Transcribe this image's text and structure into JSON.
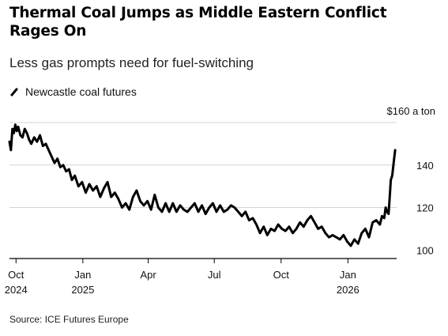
{
  "title": "Thermal Coal Jumps as Middle Eastern Conflict Rages On",
  "subtitle": "Less gas prompts need for fuel-switching",
  "legend_label": "Newcastle coal futures",
  "source": "Source: ICE Futures Europe",
  "colors": {
    "line": "#000000",
    "grid": "#d4d4d4",
    "axis": "#000000"
  },
  "chart_data": {
    "type": "line",
    "title": "Thermal Coal Jumps as Middle Eastern Conflict Rages On",
    "subtitle": "Less gas prompts need for fuel-switching",
    "xlabel": "",
    "ylabel": "",
    "y_unit_label": "$160 a ton",
    "ylim": [
      96,
      160
    ],
    "y_ticks": [
      100,
      120,
      140
    ],
    "gridlines": [
      120,
      140,
      160
    ],
    "grid": true,
    "legend_placement": "top-left",
    "x_ticks": [
      {
        "date": "2024-10-01",
        "label": "Oct",
        "sub": "2024"
      },
      {
        "date": "2025-01-01",
        "label": "Jan",
        "sub": "2025"
      },
      {
        "date": "2025-04-01",
        "label": "Apr",
        "sub": ""
      },
      {
        "date": "2025-07-01",
        "label": "Jul",
        "sub": ""
      },
      {
        "date": "2025-10-01",
        "label": "Oct",
        "sub": ""
      },
      {
        "date": "2026-01-01",
        "label": "Jan",
        "sub": "2026"
      }
    ],
    "xlim": [
      "2024-09-22",
      "2026-03-08"
    ],
    "series": [
      {
        "name": "Newcastle coal futures",
        "x": [
          "2024-09-22",
          "2024-09-24",
          "2024-09-26",
          "2024-09-28",
          "2024-09-30",
          "2024-10-02",
          "2024-10-04",
          "2024-10-07",
          "2024-10-10",
          "2024-10-13",
          "2024-10-16",
          "2024-10-19",
          "2024-10-22",
          "2024-10-26",
          "2024-10-30",
          "2024-11-03",
          "2024-11-07",
          "2024-11-11",
          "2024-11-15",
          "2024-11-19",
          "2024-11-23",
          "2024-11-27",
          "2024-12-01",
          "2024-12-05",
          "2024-12-09",
          "2024-12-13",
          "2024-12-17",
          "2024-12-21",
          "2024-12-26",
          "2024-12-31",
          "2025-01-05",
          "2025-01-10",
          "2025-01-15",
          "2025-01-20",
          "2025-01-25",
          "2025-01-30",
          "2025-02-04",
          "2025-02-09",
          "2025-02-14",
          "2025-02-19",
          "2025-02-24",
          "2025-03-01",
          "2025-03-06",
          "2025-03-11",
          "2025-03-16",
          "2025-03-21",
          "2025-03-26",
          "2025-03-31",
          "2025-04-05",
          "2025-04-10",
          "2025-04-15",
          "2025-04-20",
          "2025-04-25",
          "2025-04-30",
          "2025-05-05",
          "2025-05-10",
          "2025-05-15",
          "2025-05-20",
          "2025-05-25",
          "2025-05-30",
          "2025-06-04",
          "2025-06-09",
          "2025-06-14",
          "2025-06-19",
          "2025-06-24",
          "2025-06-29",
          "2025-07-04",
          "2025-07-09",
          "2025-07-14",
          "2025-07-19",
          "2025-07-24",
          "2025-07-29",
          "2025-08-03",
          "2025-08-08",
          "2025-08-13",
          "2025-08-18",
          "2025-08-23",
          "2025-08-28",
          "2025-09-02",
          "2025-09-07",
          "2025-09-12",
          "2025-09-17",
          "2025-09-22",
          "2025-09-27",
          "2025-10-02",
          "2025-10-07",
          "2025-10-12",
          "2025-10-17",
          "2025-10-22",
          "2025-10-27",
          "2025-11-01",
          "2025-11-06",
          "2025-11-11",
          "2025-11-16",
          "2025-11-21",
          "2025-11-26",
          "2025-12-01",
          "2025-12-06",
          "2025-12-11",
          "2025-12-16",
          "2025-12-21",
          "2025-12-26",
          "2025-12-31",
          "2026-01-05",
          "2026-01-10",
          "2026-01-15",
          "2026-01-20",
          "2026-01-25",
          "2026-01-30",
          "2026-02-04",
          "2026-02-09",
          "2026-02-14",
          "2026-02-17",
          "2026-02-20",
          "2026-02-22",
          "2026-02-24",
          "2026-02-26",
          "2026-02-28",
          "2026-03-01",
          "2026-03-03",
          "2026-03-05",
          "2026-03-07"
        ],
        "y": [
          151,
          147,
          157,
          155,
          159,
          156,
          158,
          154,
          153,
          157,
          155,
          152,
          150,
          153,
          151,
          154,
          149,
          150,
          147,
          144,
          141,
          143,
          139,
          140,
          137,
          138,
          133,
          135,
          130,
          132,
          127,
          131,
          128,
          130,
          125,
          129,
          132,
          125,
          127,
          124,
          120,
          122,
          119,
          125,
          128,
          123,
          121,
          123,
          119,
          126,
          120,
          118,
          122,
          118,
          122,
          118,
          121,
          119,
          118,
          120,
          122,
          118,
          121,
          117,
          120,
          122,
          118,
          121,
          118,
          119,
          121,
          120,
          118,
          116,
          118,
          114,
          115,
          112,
          108,
          111,
          107,
          110,
          109,
          112,
          110,
          109,
          111,
          108,
          110,
          113,
          111,
          114,
          116,
          113,
          110,
          111,
          108,
          106,
          107,
          106,
          105,
          107,
          104,
          102,
          105,
          103,
          108,
          110,
          106,
          113,
          114,
          112,
          116,
          115,
          120,
          118,
          117,
          127,
          133,
          135,
          141,
          147
        ]
      }
    ]
  }
}
